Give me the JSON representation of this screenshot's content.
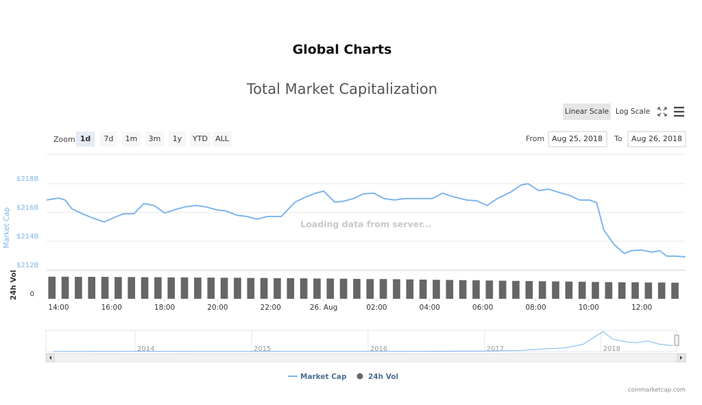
{
  "header": {
    "title": "Global Charts"
  },
  "controls": {
    "scale_buttons": [
      "Linear Scale",
      "Log Scale"
    ],
    "selected_scale_index": 0,
    "zoom_label": "Zoom",
    "zoom_buttons": [
      "1d",
      "7d",
      "1m",
      "3m",
      "1y",
      "YTD",
      "ALL"
    ],
    "selected_zoom_index": 0,
    "from_label": "From",
    "from_date": "Aug 25, 2018",
    "to_label": "To",
    "to_date": "Aug 26, 2018"
  },
  "loading_text": "Loading data from server...",
  "credit": "coinmarketcap.com",
  "chart_data": [
    {
      "type": "line",
      "title": "Total Market Capitalization",
      "y_label": "Market Cap",
      "xlim": [
        13.55,
        37.65
      ],
      "xticks": [
        {
          "value": 14,
          "label": "14:00"
        },
        {
          "value": 16,
          "label": "16:00"
        },
        {
          "value": 18,
          "label": "18:00"
        },
        {
          "value": 20,
          "label": "20:00"
        },
        {
          "value": 22,
          "label": "22:00"
        },
        {
          "value": 24,
          "label": "26. Aug"
        },
        {
          "value": 26,
          "label": "02:00"
        },
        {
          "value": 28,
          "label": "04:00"
        },
        {
          "value": 30,
          "label": "06:00"
        },
        {
          "value": 32,
          "label": "08:00"
        },
        {
          "value": 34,
          "label": "10:00"
        },
        {
          "value": 36,
          "label": "12:00"
        }
      ],
      "ylim": [
        212,
        219
      ],
      "yticks": [
        {
          "value": 212,
          "label": "$212B"
        },
        {
          "value": 214,
          "label": "$214B"
        },
        {
          "value": 216,
          "label": "$216B"
        },
        {
          "value": 218,
          "label": "$218B"
        }
      ],
      "grid": true,
      "series": [
        {
          "name": "Market Cap",
          "color": "#7cb5ec",
          "x": [
            13.55,
            14.0,
            14.25,
            14.51,
            14.9,
            15.28,
            15.72,
            16.06,
            16.45,
            16.84,
            17.22,
            17.61,
            18.0,
            18.39,
            18.78,
            19.16,
            19.55,
            19.94,
            20.33,
            20.72,
            21.1,
            21.49,
            21.88,
            22.4,
            22.92,
            23.3,
            23.69,
            24.0,
            24.42,
            24.73,
            25.12,
            25.5,
            25.89,
            26.28,
            26.67,
            27.06,
            27.57,
            28.09,
            28.48,
            28.87,
            29.39,
            29.77,
            30.16,
            30.55,
            31.07,
            31.45,
            31.71,
            32.1,
            32.49,
            32.88,
            33.27,
            33.65,
            34.04,
            34.3,
            34.56,
            34.95,
            35.34,
            35.6,
            35.98,
            36.37,
            36.68,
            36.94,
            37.27,
            37.64
          ],
          "values": [
            216.86,
            217.0,
            216.86,
            216.24,
            215.91,
            215.62,
            215.34,
            215.62,
            215.91,
            215.91,
            216.62,
            216.48,
            215.96,
            216.19,
            216.39,
            216.48,
            216.39,
            216.19,
            216.1,
            215.81,
            215.72,
            215.53,
            215.72,
            215.72,
            216.72,
            217.05,
            217.34,
            217.48,
            216.72,
            216.77,
            216.96,
            217.29,
            217.34,
            216.96,
            216.86,
            216.96,
            216.96,
            216.96,
            217.34,
            217.1,
            216.86,
            216.81,
            216.48,
            216.96,
            217.43,
            217.91,
            218.0,
            217.53,
            217.62,
            217.39,
            217.19,
            216.86,
            216.86,
            216.67,
            214.81,
            213.77,
            213.15,
            213.34,
            213.39,
            213.24,
            213.34,
            212.96,
            212.96,
            212.91
          ]
        }
      ]
    },
    {
      "type": "bar",
      "y_label": "24h Vol",
      "xlim": [
        13.55,
        37.65
      ],
      "ylim": [
        0,
        15
      ],
      "yticks": [
        0
      ],
      "series": [
        {
          "name": "24h Vol",
          "color": "#666666",
          "x": [
            13.75,
            14.25,
            14.75,
            15.25,
            15.75,
            16.25,
            16.75,
            17.25,
            17.75,
            18.25,
            18.75,
            19.25,
            19.75,
            20.25,
            20.75,
            21.25,
            21.75,
            22.25,
            22.75,
            23.25,
            23.75,
            24.25,
            24.75,
            25.25,
            25.75,
            26.25,
            26.75,
            27.25,
            27.75,
            28.25,
            28.75,
            29.25,
            29.75,
            30.25,
            30.75,
            31.25,
            31.75,
            32.25,
            32.75,
            33.25,
            33.75,
            34.25,
            34.75,
            35.25,
            35.75,
            36.25,
            36.75,
            37.25
          ],
          "values": [
            12.1,
            12.1,
            12.0,
            12.0,
            12.0,
            11.9,
            11.9,
            11.8,
            11.8,
            11.7,
            11.7,
            11.6,
            11.6,
            11.5,
            11.5,
            11.4,
            11.4,
            11.3,
            11.3,
            11.2,
            11.1,
            11.1,
            11.0,
            10.9,
            10.8,
            10.8,
            10.7,
            10.6,
            10.5,
            10.4,
            10.3,
            10.2,
            10.1,
            10.0,
            9.9,
            9.8,
            9.7,
            9.6,
            9.5,
            9.4,
            9.3,
            9.2,
            9.1,
            9.0,
            9.0,
            8.9,
            8.9,
            8.8
          ]
        }
      ]
    },
    {
      "type": "navigator",
      "xlim": [
        2013.24,
        2018.65
      ],
      "xticks": [
        2014,
        2015,
        2016,
        2017,
        2018
      ],
      "ylim": [
        0,
        850
      ],
      "series": [
        {
          "color": "#7cb5ec",
          "x": [
            2013.3,
            2014.0,
            2014.5,
            2015.0,
            2015.5,
            2016.0,
            2016.5,
            2017.0,
            2017.3,
            2017.5,
            2017.7,
            2017.85,
            2017.95,
            2018.02,
            2018.1,
            2018.2,
            2018.3,
            2018.4,
            2018.5,
            2018.62
          ],
          "values": [
            2,
            12,
            7,
            5,
            6,
            7,
            10,
            18,
            40,
            100,
            150,
            300,
            600,
            800,
            500,
            400,
            350,
            420,
            300,
            230
          ]
        }
      ]
    }
  ]
}
